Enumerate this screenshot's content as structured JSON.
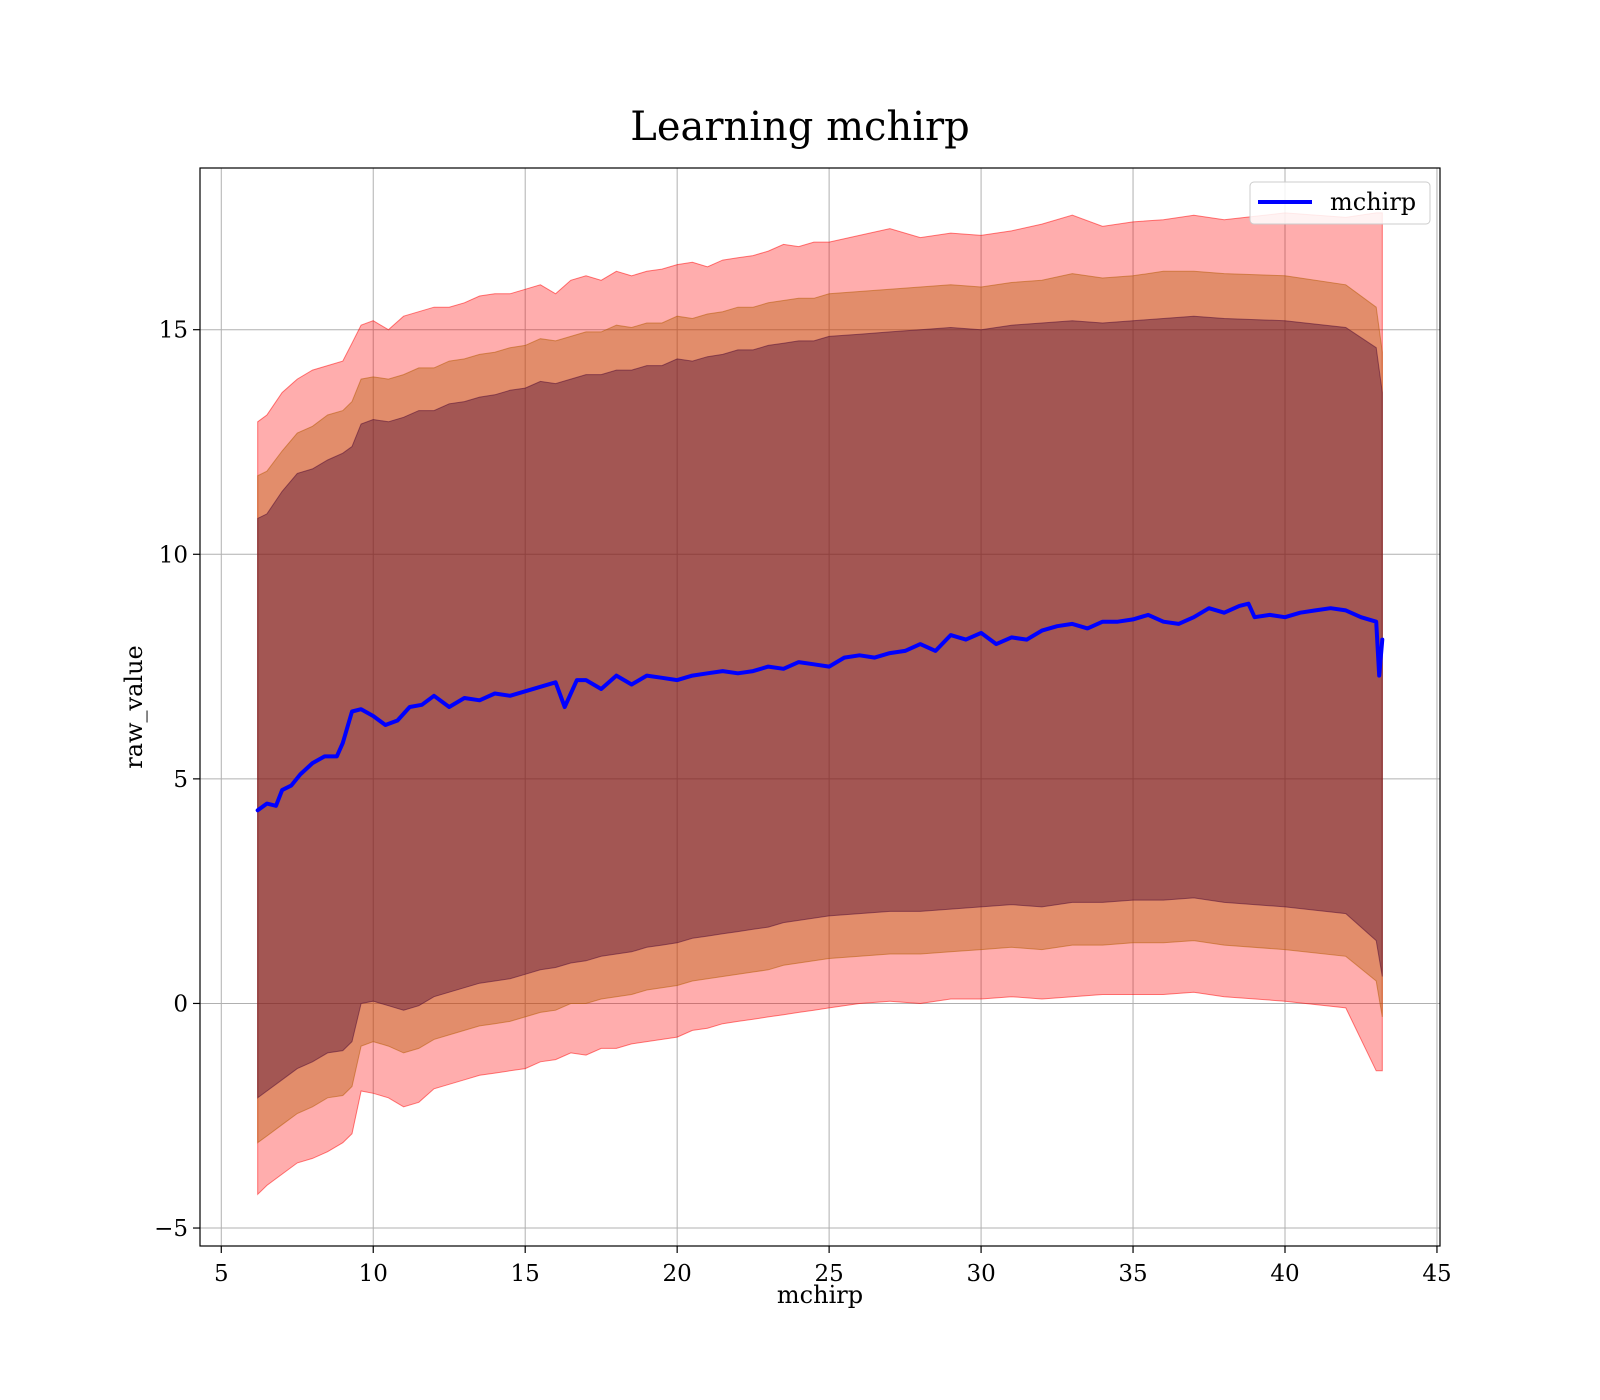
{
  "chart_data": {
    "type": "line",
    "title": "Learning mchirp",
    "xlabel": "mchirp",
    "ylabel": "raw_value",
    "xlim": [
      4.3,
      45.1
    ],
    "ylim": [
      -5.4,
      18.6
    ],
    "xticks": [
      5,
      10,
      15,
      20,
      25,
      30,
      35,
      40,
      45
    ],
    "yticks": [
      -5,
      0,
      5,
      10,
      15
    ],
    "grid": true,
    "legend": {
      "position": "top-right",
      "entries": [
        "mchirp"
      ]
    },
    "colors": {
      "line": "#0000ff",
      "band_outer": "#ff0000",
      "band_middle": "#b35900",
      "band_inner": "#4d0a33",
      "grid": "#b0b0b0"
    },
    "series": [
      {
        "name": "mchirp",
        "x": [
          6.2,
          6.5,
          6.8,
          7.0,
          7.3,
          7.6,
          8.0,
          8.4,
          8.8,
          9.0,
          9.3,
          9.6,
          10.0,
          10.4,
          10.8,
          11.2,
          11.6,
          12.0,
          12.5,
          13.0,
          13.5,
          14.0,
          14.5,
          15.0,
          15.5,
          16.0,
          16.3,
          16.7,
          17.0,
          17.5,
          18.0,
          18.5,
          19.0,
          19.5,
          20.0,
          20.5,
          21.0,
          21.5,
          22.0,
          22.5,
          23.0,
          23.5,
          24.0,
          24.5,
          25.0,
          25.5,
          26.0,
          26.5,
          27.0,
          27.5,
          28.0,
          28.5,
          29.0,
          29.5,
          30.0,
          30.5,
          31.0,
          31.5,
          32.0,
          32.5,
          33.0,
          33.5,
          34.0,
          34.5,
          35.0,
          35.5,
          36.0,
          36.5,
          37.0,
          37.5,
          38.0,
          38.5,
          38.8,
          39.0,
          39.5,
          40.0,
          40.5,
          41.0,
          41.5,
          42.0,
          42.5,
          43.0,
          43.1,
          43.2
        ],
        "y": [
          4.3,
          4.45,
          4.4,
          4.75,
          4.85,
          5.1,
          5.35,
          5.5,
          5.5,
          5.8,
          6.5,
          6.55,
          6.4,
          6.2,
          6.3,
          6.6,
          6.65,
          6.85,
          6.6,
          6.8,
          6.75,
          6.9,
          6.85,
          6.95,
          7.05,
          7.15,
          6.6,
          7.2,
          7.2,
          7.0,
          7.3,
          7.1,
          7.3,
          7.25,
          7.2,
          7.3,
          7.35,
          7.4,
          7.35,
          7.4,
          7.5,
          7.45,
          7.6,
          7.55,
          7.5,
          7.7,
          7.75,
          7.7,
          7.8,
          7.85,
          8.0,
          7.85,
          8.2,
          8.1,
          8.25,
          8.0,
          8.15,
          8.1,
          8.3,
          8.4,
          8.45,
          8.35,
          8.5,
          8.5,
          8.55,
          8.65,
          8.5,
          8.45,
          8.6,
          8.8,
          8.7,
          8.85,
          8.9,
          8.6,
          8.65,
          8.6,
          8.7,
          8.75,
          8.8,
          8.75,
          8.6,
          8.5,
          7.3,
          8.1
        ]
      }
    ],
    "bands": [
      {
        "name": "outer",
        "upper": [
          12.95,
          13.1,
          13.6,
          13.9,
          14.1,
          14.2,
          14.3,
          14.7,
          15.1,
          15.2,
          15.0,
          15.3,
          15.4,
          15.5,
          15.5,
          15.6,
          15.75,
          15.8,
          15.8,
          15.9,
          16.0,
          15.8,
          16.1,
          16.2,
          16.1,
          16.3,
          16.2,
          16.3,
          16.35,
          16.45,
          16.5,
          16.4,
          16.55,
          16.6,
          16.65,
          16.75,
          16.9,
          16.85,
          16.95,
          16.95,
          17.1,
          17.25,
          17.05,
          17.15,
          17.1,
          17.2,
          17.35,
          17.55,
          17.3,
          17.4,
          17.45,
          17.55,
          17.45,
          17.6,
          17.5,
          17.6,
          17.6
        ],
        "lower": [
          -4.25,
          -4.05,
          -3.8,
          -3.55,
          -3.45,
          -3.3,
          -3.1,
          -2.9,
          -1.95,
          -2.0,
          -2.1,
          -2.3,
          -2.2,
          -1.9,
          -1.8,
          -1.7,
          -1.6,
          -1.55,
          -1.5,
          -1.45,
          -1.3,
          -1.25,
          -1.1,
          -1.15,
          -1.0,
          -1.0,
          -0.9,
          -0.85,
          -0.8,
          -0.75,
          -0.6,
          -0.55,
          -0.45,
          -0.4,
          -0.35,
          -0.3,
          -0.25,
          -0.2,
          -0.15,
          -0.1,
          0.0,
          0.05,
          0.0,
          0.1,
          0.1,
          0.15,
          0.1,
          0.15,
          0.2,
          0.2,
          0.2,
          0.25,
          0.15,
          0.05,
          -0.1,
          -1.5,
          -1.5
        ]
      },
      {
        "name": "middle",
        "upper": [
          11.75,
          11.85,
          12.3,
          12.7,
          12.85,
          13.1,
          13.2,
          13.4,
          13.9,
          13.95,
          13.9,
          14.0,
          14.15,
          14.15,
          14.3,
          14.35,
          14.45,
          14.5,
          14.6,
          14.65,
          14.8,
          14.75,
          14.85,
          14.95,
          14.95,
          15.1,
          15.05,
          15.15,
          15.15,
          15.3,
          15.25,
          15.35,
          15.4,
          15.5,
          15.5,
          15.6,
          15.65,
          15.7,
          15.7,
          15.8,
          15.85,
          15.9,
          15.95,
          16.0,
          15.95,
          16.05,
          16.1,
          16.25,
          16.15,
          16.2,
          16.3,
          16.3,
          16.25,
          16.2,
          16.0,
          15.5,
          14.5
        ],
        "lower": [
          -3.1,
          -2.95,
          -2.7,
          -2.45,
          -2.3,
          -2.1,
          -2.05,
          -1.85,
          -0.95,
          -0.85,
          -0.95,
          -1.1,
          -1.0,
          -0.8,
          -0.7,
          -0.6,
          -0.5,
          -0.45,
          -0.4,
          -0.3,
          -0.2,
          -0.15,
          0.0,
          0.0,
          0.1,
          0.15,
          0.2,
          0.3,
          0.35,
          0.4,
          0.5,
          0.55,
          0.6,
          0.65,
          0.7,
          0.75,
          0.85,
          0.9,
          0.95,
          1.0,
          1.05,
          1.1,
          1.1,
          1.15,
          1.2,
          1.25,
          1.2,
          1.3,
          1.3,
          1.35,
          1.35,
          1.4,
          1.3,
          1.2,
          1.05,
          0.5,
          -0.3
        ]
      },
      {
        "name": "inner",
        "upper": [
          10.8,
          10.9,
          11.4,
          11.8,
          11.9,
          12.1,
          12.25,
          12.4,
          12.9,
          13.0,
          12.95,
          13.05,
          13.2,
          13.2,
          13.35,
          13.4,
          13.5,
          13.55,
          13.65,
          13.7,
          13.85,
          13.8,
          13.9,
          14.0,
          14.0,
          14.1,
          14.1,
          14.2,
          14.2,
          14.35,
          14.3,
          14.4,
          14.45,
          14.55,
          14.55,
          14.65,
          14.7,
          14.75,
          14.75,
          14.85,
          14.9,
          14.95,
          15.0,
          15.05,
          15.0,
          15.1,
          15.15,
          15.2,
          15.15,
          15.2,
          15.25,
          15.3,
          15.25,
          15.2,
          15.05,
          14.6,
          13.6
        ],
        "lower": [
          -2.1,
          -1.95,
          -1.7,
          -1.45,
          -1.3,
          -1.1,
          -1.05,
          -0.85,
          0.0,
          0.05,
          -0.05,
          -0.15,
          -0.05,
          0.15,
          0.25,
          0.35,
          0.45,
          0.5,
          0.55,
          0.65,
          0.75,
          0.8,
          0.9,
          0.95,
          1.05,
          1.1,
          1.15,
          1.25,
          1.3,
          1.35,
          1.45,
          1.5,
          1.55,
          1.6,
          1.65,
          1.7,
          1.8,
          1.85,
          1.9,
          1.95,
          2.0,
          2.05,
          2.05,
          2.1,
          2.15,
          2.2,
          2.15,
          2.25,
          2.25,
          2.3,
          2.3,
          2.35,
          2.25,
          2.15,
          2.0,
          1.4,
          0.6
        ]
      }
    ],
    "band_x": [
      6.2,
      6.5,
      7.0,
      7.5,
      8.0,
      8.5,
      9.0,
      9.3,
      9.6,
      10.0,
      10.5,
      11.0,
      11.5,
      12.0,
      12.5,
      13.0,
      13.5,
      14.0,
      14.5,
      15.0,
      15.5,
      16.0,
      16.5,
      17.0,
      17.5,
      18.0,
      18.5,
      19.0,
      19.5,
      20.0,
      20.5,
      21.0,
      21.5,
      22.0,
      22.5,
      23.0,
      23.5,
      24.0,
      24.5,
      25.0,
      26.0,
      27.0,
      28.0,
      29.0,
      30.0,
      31.0,
      32.0,
      33.0,
      34.0,
      35.0,
      36.0,
      37.0,
      38.0,
      40.0,
      42.0,
      43.0,
      43.2
    ]
  }
}
